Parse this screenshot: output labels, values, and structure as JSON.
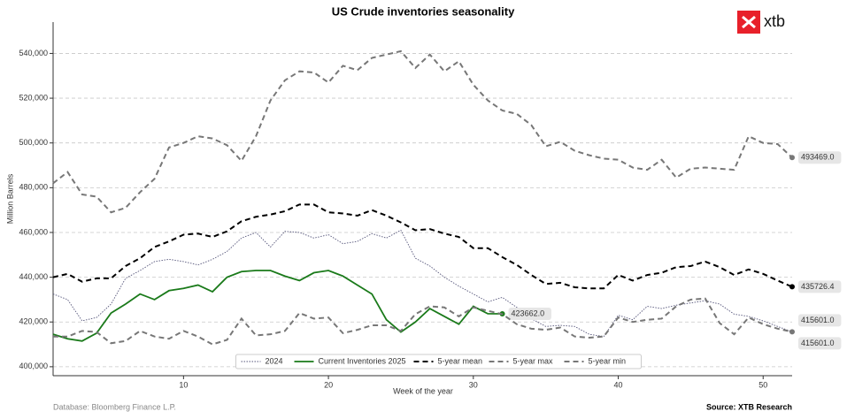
{
  "chart_data": {
    "type": "line",
    "title": "US Crude inventories seasonality",
    "x_label": "Week of the year",
    "y_label": "Million Barrels",
    "logo": "xtb",
    "footer_left": "Database: Bloomberg Finance L.P.",
    "footer_right": "Source: XTB Research",
    "grid": true,
    "legend": "bottom",
    "xlim": [
      1,
      52
    ],
    "xticks": [
      10,
      20,
      30,
      40,
      50
    ],
    "ylim": [
      396000,
      554000
    ],
    "yticks": [
      {
        "value": 400000,
        "label": "400,000"
      },
      {
        "value": 420000,
        "label": "420,000"
      },
      {
        "value": 440000,
        "label": "440,000"
      },
      {
        "value": 460000,
        "label": "460,000"
      },
      {
        "value": 480000,
        "label": "480,000"
      },
      {
        "value": 500000,
        "label": "500,000"
      },
      {
        "value": 520000,
        "label": "520,000"
      },
      {
        "value": 540000,
        "label": "540,000"
      }
    ],
    "x": [
      1,
      2,
      3,
      4,
      5,
      6,
      7,
      8,
      9,
      10,
      11,
      12,
      13,
      14,
      15,
      16,
      17,
      18,
      19,
      20,
      21,
      22,
      23,
      24,
      25,
      26,
      27,
      28,
      29,
      30,
      31,
      32,
      33,
      34,
      35,
      36,
      37,
      38,
      39,
      40,
      41,
      42,
      43,
      44,
      45,
      46,
      47,
      48,
      49,
      50,
      51,
      52
    ],
    "series": [
      {
        "name": "2024",
        "color": "#55557a",
        "dash": "dot",
        "values": [
          432500,
          430000,
          420500,
          422000,
          428000,
          439500,
          443000,
          447000,
          448000,
          447000,
          445500,
          448000,
          451500,
          457500,
          460000,
          453500,
          460500,
          460000,
          457500,
          459000,
          455000,
          456000,
          459500,
          457500,
          461000,
          448500,
          445000,
          440000,
          436000,
          432500,
          429000,
          431000,
          426500,
          421500,
          418000,
          418500,
          418000,
          414500,
          413500,
          423000,
          421000,
          427000,
          426000,
          427500,
          428500,
          429500,
          428000,
          423500,
          422500,
          420500,
          418000,
          415601
        ],
        "end_label": "415601.0"
      },
      {
        "name": "Current Inventories 2025",
        "color": "#1a7a1a",
        "dash": "solid",
        "values": [
          414500,
          412500,
          411500,
          415000,
          424000,
          428000,
          432500,
          430000,
          434000,
          435000,
          436500,
          433500,
          440000,
          442500,
          443000,
          443000,
          440500,
          438500,
          442000,
          443000,
          440500,
          436500,
          432500,
          421000,
          415500,
          420000,
          426000,
          422500,
          419000,
          427000,
          423700,
          423662,
          null,
          null,
          null,
          null,
          null,
          null,
          null,
          null,
          null,
          null,
          null,
          null,
          null,
          null,
          null,
          null,
          null,
          null,
          null,
          null
        ],
        "end_label": "423662.0"
      },
      {
        "name": "5-year mean",
        "color": "#000000",
        "dash": "dash",
        "values": [
          440000,
          441500,
          438000,
          439500,
          439500,
          445000,
          448500,
          453500,
          456000,
          459000,
          459500,
          458000,
          460500,
          465000,
          467000,
          468000,
          469500,
          472500,
          472500,
          469000,
          468500,
          467500,
          470000,
          467500,
          464500,
          461000,
          461500,
          459500,
          458000,
          453000,
          453000,
          449000,
          445500,
          441000,
          437000,
          437500,
          435500,
          435000,
          435000,
          441000,
          438500,
          441000,
          442000,
          444500,
          445000,
          447000,
          444500,
          441000,
          443500,
          441500,
          438500,
          435726.4
        ],
        "end_label": "435726.4"
      },
      {
        "name": "5-year max",
        "color": "#777777",
        "dash": "dash",
        "values": [
          482000,
          487000,
          477000,
          476000,
          469000,
          471000,
          478000,
          484000,
          498000,
          500000,
          503000,
          502000,
          499000,
          492000,
          503000,
          519000,
          528000,
          532000,
          531500,
          527000,
          534500,
          532500,
          538000,
          539500,
          541000,
          533500,
          539500,
          532000,
          536500,
          526000,
          519000,
          514500,
          513000,
          508000,
          498500,
          500500,
          496500,
          494500,
          493000,
          492500,
          489000,
          488000,
          492500,
          484500,
          488500,
          489000,
          488500,
          488000,
          503000,
          500000,
          499500,
          493469
        ],
        "end_label": "493469.0"
      },
      {
        "name": "5-year min",
        "color": "#777777",
        "dash": "dash",
        "values": [
          413500,
          413500,
          416000,
          415500,
          410500,
          411500,
          416000,
          413500,
          412500,
          416000,
          413500,
          410000,
          412000,
          421500,
          414000,
          414500,
          416000,
          424000,
          421500,
          422000,
          415000,
          416500,
          418500,
          418500,
          416000,
          423500,
          427000,
          426500,
          422500,
          426500,
          425000,
          423500,
          419000,
          417000,
          416500,
          417500,
          413500,
          413000,
          413500,
          422000,
          420000,
          421000,
          421500,
          427000,
          430000,
          430500,
          419500,
          414500,
          422000,
          419000,
          417000,
          415601
        ],
        "end_label": "415601.0"
      }
    ]
  }
}
